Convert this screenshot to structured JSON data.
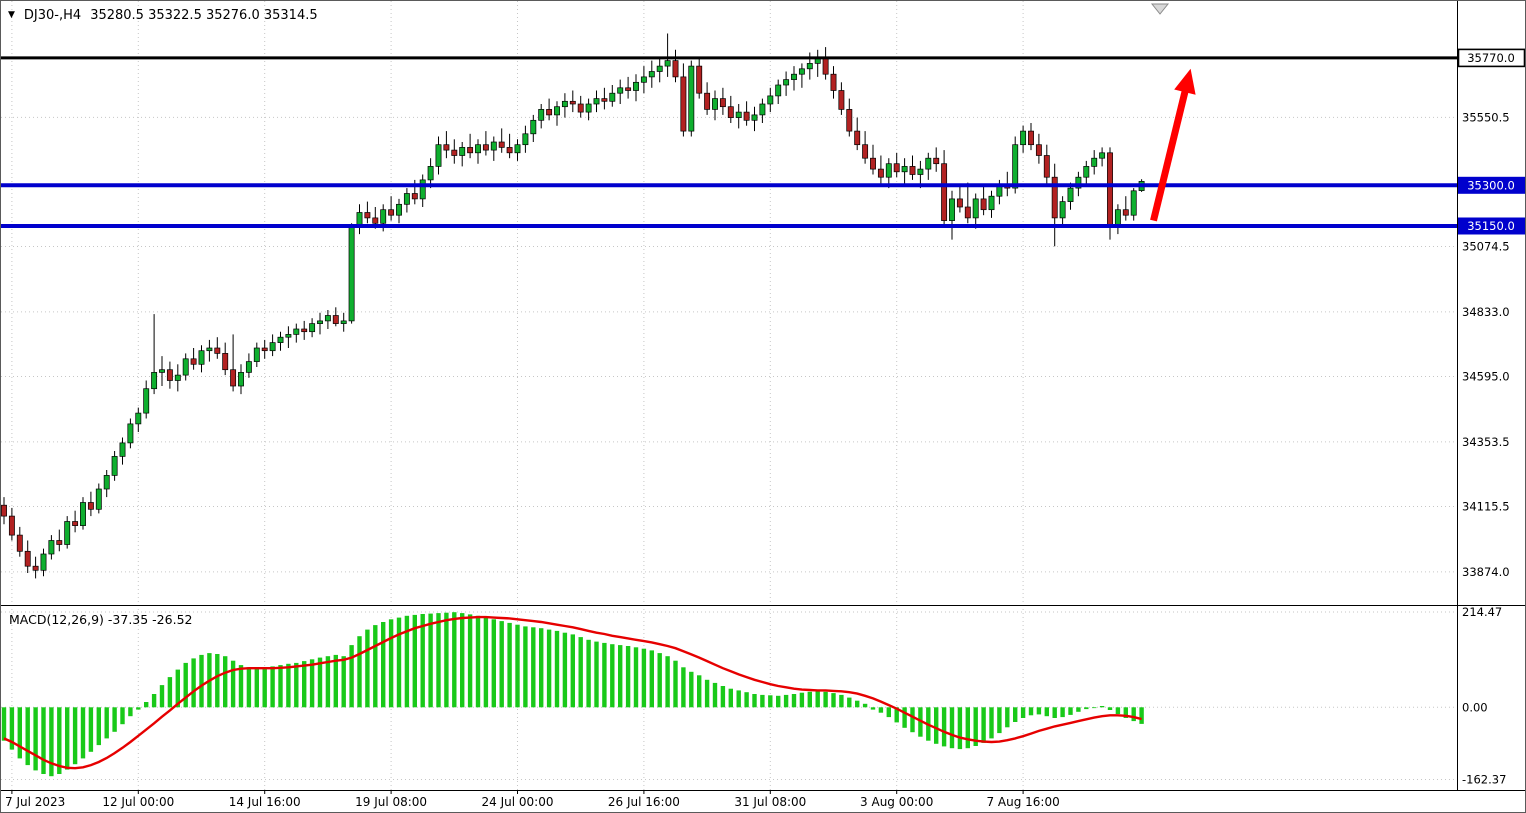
{
  "header": {
    "dropdown_icon": "▼",
    "symbol": "DJ30-,H4",
    "ohlc": "35280.5 35322.5 35276.0 35314.5"
  },
  "colors": {
    "background": "#ffffff",
    "bull": "#0faf2f",
    "bear": "#b22222",
    "wick": "#000000",
    "grid": "#c6c6c6",
    "frame": "#000000",
    "histogram": "#19c919",
    "signal": "#e60000",
    "support": "#0000cd",
    "resistance": "#000000",
    "arrow": "#ff0000"
  },
  "chart_data": {
    "type": "candlestick",
    "symbol": "DJ30-,H4",
    "timeframe": "H4",
    "main": {
      "ymax": 35980,
      "ymin": 33752,
      "axis_labels": [
        {
          "label": "35550.5",
          "price": 35550.5
        },
        {
          "label": "35074.5",
          "price": 35074.5
        },
        {
          "label": "34833.0",
          "price": 34833.0
        },
        {
          "label": "34595.0",
          "price": 34595.0
        },
        {
          "label": "34353.5",
          "price": 34353.5
        },
        {
          "label": "34115.5",
          "price": 34115.5
        },
        {
          "label": "33874.0",
          "price": 33874.0
        }
      ],
      "hlines": [
        {
          "name": "resistance-line-35770",
          "label": "35770.0",
          "price": 35770.0,
          "color": "#000000",
          "width": 3,
          "badge": "outline"
        },
        {
          "name": "support-line-35300",
          "label": "35300.0",
          "price": 35300.0,
          "color": "#0000cd",
          "width": 4,
          "badge": "solid"
        },
        {
          "name": "support-line-35150",
          "label": "35150.0",
          "price": 35150.0,
          "color": "#0000cd",
          "width": 4,
          "badge": "solid"
        }
      ],
      "candles": [
        [
          34120,
          34150,
          34050,
          34080
        ],
        [
          34080,
          34110,
          33990,
          34010
        ],
        [
          34010,
          34040,
          33930,
          33950
        ],
        [
          33950,
          33990,
          33870,
          33895
        ],
        [
          33895,
          33930,
          33850,
          33880
        ],
        [
          33880,
          33960,
          33858,
          33940
        ],
        [
          33940,
          34010,
          33920,
          33990
        ],
        [
          33990,
          34030,
          33950,
          33975
        ],
        [
          33975,
          34080,
          33960,
          34060
        ],
        [
          34060,
          34100,
          34020,
          34045
        ],
        [
          34045,
          34150,
          34030,
          34130
        ],
        [
          34130,
          34170,
          34080,
          34105
        ],
        [
          34105,
          34200,
          34090,
          34180
        ],
        [
          34180,
          34250,
          34150,
          34230
        ],
        [
          34230,
          34320,
          34210,
          34300
        ],
        [
          34300,
          34370,
          34270,
          34350
        ],
        [
          34350,
          34440,
          34330,
          34420
        ],
        [
          34420,
          34480,
          34390,
          34460
        ],
        [
          34460,
          34580,
          34440,
          34550
        ],
        [
          34550,
          34825,
          34530,
          34610
        ],
        [
          34610,
          34670,
          34560,
          34620
        ],
        [
          34620,
          34650,
          34550,
          34580
        ],
        [
          34580,
          34640,
          34540,
          34600
        ],
        [
          34600,
          34680,
          34580,
          34660
        ],
        [
          34660,
          34700,
          34620,
          34640
        ],
        [
          34640,
          34710,
          34610,
          34690
        ],
        [
          34690,
          34730,
          34650,
          34700
        ],
        [
          34700,
          34740,
          34660,
          34680
        ],
        [
          34680,
          34720,
          34600,
          34620
        ],
        [
          34620,
          34750,
          34540,
          34560
        ],
        [
          34560,
          34640,
          34530,
          34610
        ],
        [
          34610,
          34680,
          34590,
          34650
        ],
        [
          34650,
          34720,
          34630,
          34700
        ],
        [
          34700,
          34730,
          34660,
          34690
        ],
        [
          34690,
          34750,
          34670,
          34720
        ],
        [
          34720,
          34760,
          34690,
          34740
        ],
        [
          34740,
          34780,
          34700,
          34750
        ],
        [
          34750,
          34790,
          34720,
          34770
        ],
        [
          34770,
          34800,
          34730,
          34760
        ],
        [
          34760,
          34810,
          34740,
          34790
        ],
        [
          34790,
          34830,
          34750,
          34800
        ],
        [
          34800,
          34840,
          34770,
          34820
        ],
        [
          34820,
          34850,
          34780,
          34790
        ],
        [
          34790,
          34830,
          34760,
          34800
        ],
        [
          34800,
          35160,
          34790,
          35150
        ],
        [
          35150,
          35230,
          35120,
          35200
        ],
        [
          35200,
          35240,
          35160,
          35180
        ],
        [
          35180,
          35220,
          35140,
          35160
        ],
        [
          35160,
          35230,
          35130,
          35210
        ],
        [
          35210,
          35260,
          35170,
          35190
        ],
        [
          35190,
          35250,
          35160,
          35230
        ],
        [
          35230,
          35290,
          35200,
          35270
        ],
        [
          35270,
          35320,
          35230,
          35250
        ],
        [
          35250,
          35340,
          35220,
          35320
        ],
        [
          35320,
          35400,
          35290,
          35370
        ],
        [
          35370,
          35480,
          35340,
          35450
        ],
        [
          35450,
          35500,
          35400,
          35430
        ],
        [
          35430,
          35470,
          35380,
          35410
        ],
        [
          35410,
          35460,
          35370,
          35440
        ],
        [
          35440,
          35490,
          35400,
          35420
        ],
        [
          35420,
          35470,
          35380,
          35450
        ],
        [
          35450,
          35500,
          35410,
          35430
        ],
        [
          35430,
          35480,
          35390,
          35460
        ],
        [
          35460,
          35510,
          35420,
          35440
        ],
        [
          35440,
          35490,
          35400,
          35420
        ],
        [
          35420,
          35470,
          35390,
          35450
        ],
        [
          35450,
          35520,
          35420,
          35490
        ],
        [
          35490,
          35560,
          35460,
          35540
        ],
        [
          35540,
          35600,
          35510,
          35580
        ],
        [
          35580,
          35620,
          35540,
          35560
        ],
        [
          35560,
          35610,
          35520,
          35590
        ],
        [
          35590,
          35640,
          35550,
          35610
        ],
        [
          35610,
          35650,
          35570,
          35600
        ],
        [
          35600,
          35630,
          35550,
          35570
        ],
        [
          35570,
          35620,
          35540,
          35600
        ],
        [
          35600,
          35650,
          35570,
          35620
        ],
        [
          35620,
          35660,
          35580,
          35610
        ],
        [
          35610,
          35670,
          35590,
          35640
        ],
        [
          35640,
          35690,
          35600,
          35660
        ],
        [
          35660,
          35700,
          35620,
          35650
        ],
        [
          35650,
          35710,
          35610,
          35680
        ],
        [
          35680,
          35740,
          35640,
          35700
        ],
        [
          35700,
          35760,
          35660,
          35720
        ],
        [
          35720,
          35770,
          35680,
          35740
        ],
        [
          35740,
          35860,
          35700,
          35760
        ],
        [
          35760,
          35800,
          35680,
          35700
        ],
        [
          35700,
          35750,
          35480,
          35500
        ],
        [
          35500,
          35760,
          35480,
          35740
        ],
        [
          35740,
          35770,
          35620,
          35640
        ],
        [
          35640,
          35680,
          35560,
          35580
        ],
        [
          35580,
          35650,
          35540,
          35620
        ],
        [
          35620,
          35660,
          35560,
          35590
        ],
        [
          35590,
          35630,
          35530,
          35550
        ],
        [
          35550,
          35600,
          35510,
          35570
        ],
        [
          35570,
          35610,
          35520,
          35540
        ],
        [
          35540,
          35590,
          35500,
          35560
        ],
        [
          35560,
          35620,
          35530,
          35600
        ],
        [
          35600,
          35660,
          35570,
          35630
        ],
        [
          35630,
          35690,
          35600,
          35670
        ],
        [
          35670,
          35720,
          35630,
          35690
        ],
        [
          35690,
          35740,
          35650,
          35710
        ],
        [
          35710,
          35750,
          35660,
          35730
        ],
        [
          35730,
          35790,
          35690,
          35750
        ],
        [
          35750,
          35800,
          35700,
          35770
        ],
        [
          35770,
          35810,
          35690,
          35710
        ],
        [
          35710,
          35740,
          35620,
          35650
        ],
        [
          35650,
          35680,
          35560,
          35580
        ],
        [
          35580,
          35620,
          35480,
          35500
        ],
        [
          35500,
          35550,
          35430,
          35450
        ],
        [
          35450,
          35500,
          35380,
          35400
        ],
        [
          35400,
          35450,
          35340,
          35360
        ],
        [
          35360,
          35410,
          35300,
          35330
        ],
        [
          35330,
          35400,
          35290,
          35380
        ],
        [
          35380,
          35420,
          35330,
          35350
        ],
        [
          35350,
          35400,
          35300,
          35370
        ],
        [
          35370,
          35410,
          35320,
          35340
        ],
        [
          35340,
          35390,
          35290,
          35360
        ],
        [
          35360,
          35420,
          35320,
          35400
        ],
        [
          35400,
          35440,
          35350,
          35380
        ],
        [
          35380,
          35430,
          35150,
          35170
        ],
        [
          35170,
          35280,
          35100,
          35250
        ],
        [
          35250,
          35300,
          35200,
          35220
        ],
        [
          35220,
          35310,
          35160,
          35180
        ],
        [
          35180,
          35270,
          35140,
          35250
        ],
        [
          35250,
          35300,
          35190,
          35210
        ],
        [
          35210,
          35280,
          35180,
          35260
        ],
        [
          35260,
          35320,
          35230,
          35300
        ],
        [
          35300,
          35350,
          35260,
          35290
        ],
        [
          35290,
          35480,
          35270,
          35450
        ],
        [
          35450,
          35520,
          35420,
          35500
        ],
        [
          35500,
          35530,
          35430,
          35450
        ],
        [
          35450,
          35490,
          35380,
          35410
        ],
        [
          35410,
          35450,
          35300,
          35330
        ],
        [
          35330,
          35380,
          35075,
          35180
        ],
        [
          35180,
          35260,
          35150,
          35240
        ],
        [
          35240,
          35310,
          35210,
          35290
        ],
        [
          35290,
          35350,
          35260,
          35330
        ],
        [
          35330,
          35390,
          35300,
          35370
        ],
        [
          35370,
          35430,
          35340,
          35400
        ],
        [
          35400,
          35440,
          35370,
          35420
        ],
        [
          35420,
          35440,
          35100,
          35150
        ],
        [
          35150,
          35230,
          35120,
          35210
        ],
        [
          35210,
          35260,
          35170,
          35190
        ],
        [
          35190,
          35290,
          35170,
          35280
        ],
        [
          35280.5,
          35322.5,
          35276.0,
          35314.5
        ]
      ]
    },
    "macd": {
      "label": "MACD(12,26,9) -37.35 -26.52",
      "params": "12,26,9",
      "macd_value": -37.35,
      "signal_value": -26.52,
      "ymax": 228,
      "ymin": -186,
      "axis_labels": [
        {
          "label": "214.47",
          "value": 214.47
        },
        {
          "label": "0.00",
          "value": 0
        },
        {
          "label": "-162.37",
          "value": -162.37
        }
      ],
      "histogram": [
        -75,
        -95,
        -115,
        -130,
        -142,
        -150,
        -155,
        -150,
        -140,
        -128,
        -115,
        -100,
        -85,
        -70,
        -55,
        -38,
        -20,
        -5,
        12,
        30,
        50,
        68,
        85,
        100,
        110,
        118,
        122,
        120,
        115,
        105,
        95,
        90,
        88,
        90,
        92,
        95,
        98,
        100,
        104,
        108,
        112,
        115,
        118,
        115,
        140,
        160,
        175,
        185,
        192,
        198,
        202,
        206,
        208,
        210,
        211,
        212,
        213,
        214,
        212,
        209,
        206,
        202,
        198,
        194,
        190,
        186,
        182,
        180,
        178,
        175,
        172,
        168,
        164,
        158,
        152,
        148,
        145,
        142,
        140,
        138,
        135,
        132,
        128,
        122,
        115,
        105,
        90,
        80,
        72,
        62,
        55,
        48,
        42,
        38,
        34,
        30,
        28,
        27,
        26,
        28,
        30,
        33,
        35,
        36,
        35,
        32,
        28,
        22,
        15,
        8,
        -5,
        -12,
        -22,
        -34,
        -46,
        -56,
        -66,
        -75,
        -82,
        -88,
        -92,
        -94,
        -92,
        -87,
        -80,
        -70,
        -58,
        -45,
        -33,
        -24,
        -18,
        -16,
        -20,
        -24,
        -22,
        -17,
        -10,
        -4,
        0,
        3,
        -6,
        -15,
        -24,
        -31,
        -37.35
      ],
      "signal": [
        -70,
        -78,
        -88,
        -98,
        -108,
        -118,
        -126,
        -132,
        -136,
        -137,
        -135,
        -130,
        -123,
        -114,
        -103,
        -91,
        -78,
        -64,
        -50,
        -36,
        -21,
        -7,
        8,
        22,
        36,
        49,
        60,
        70,
        78,
        84,
        87,
        88,
        88,
        88,
        88,
        89,
        90,
        92,
        94,
        96,
        99,
        102,
        105,
        107,
        112,
        120,
        129,
        138,
        147,
        156,
        164,
        171,
        178,
        183,
        188,
        192,
        196,
        199,
        201,
        202,
        203,
        203,
        202,
        201,
        200,
        198,
        196,
        194,
        192,
        189,
        186,
        183,
        180,
        176,
        172,
        168,
        165,
        161,
        158,
        155,
        152,
        149,
        146,
        142,
        138,
        133,
        126,
        119,
        112,
        104,
        96,
        88,
        81,
        74,
        68,
        62,
        57,
        52,
        48,
        45,
        42,
        40,
        39,
        38,
        38,
        37,
        36,
        34,
        31,
        26,
        20,
        13,
        5,
        -3,
        -12,
        -21,
        -30,
        -39,
        -47,
        -55,
        -62,
        -68,
        -72,
        -75,
        -77,
        -78,
        -77,
        -74,
        -70,
        -65,
        -59,
        -53,
        -48,
        -43,
        -39,
        -35,
        -31,
        -27,
        -23,
        -20,
        -18,
        -18,
        -19,
        -22,
        -26.52
      ]
    },
    "x_labels": [
      {
        "label": "7 Jul 2023",
        "index": 1
      },
      {
        "label": "12 Jul 00:00",
        "index": 17
      },
      {
        "label": "14 Jul 16:00",
        "index": 33
      },
      {
        "label": "19 Jul 08:00",
        "index": 49
      },
      {
        "label": "24 Jul 00:00",
        "index": 65
      },
      {
        "label": "26 Jul 16:00",
        "index": 81
      },
      {
        "label": "31 Jul 08:00",
        "index": 97
      },
      {
        "label": "3 Aug 00:00",
        "index": 113
      },
      {
        "label": "7 Aug 16:00",
        "index": 129
      }
    ],
    "arrow": {
      "start": {
        "index": 145.5,
        "price": 35170
      },
      "end": {
        "index": 150.2,
        "price": 35730
      },
      "color": "#ff0000"
    }
  }
}
